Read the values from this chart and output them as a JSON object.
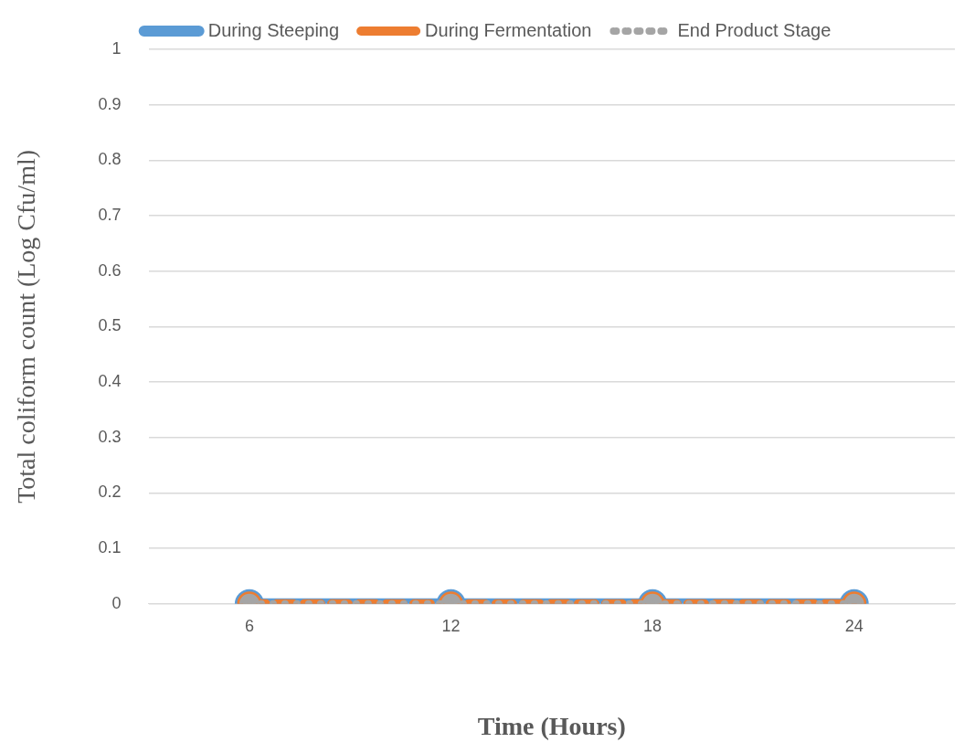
{
  "chart_data": {
    "type": "line",
    "xlabel": "Time (Hours)",
    "ylabel": "Total coliform count (Log Cfu/ml)",
    "categories": [
      "6",
      "12",
      "18",
      "24"
    ],
    "series": [
      {
        "name": "During Steeping",
        "color": "#5b9bd5",
        "line_style": "solid",
        "values": [
          0,
          0,
          0,
          0
        ]
      },
      {
        "name": "During Fermentation",
        "color": "#ed7d31",
        "line_style": "dashed",
        "values": [
          0,
          0,
          0,
          0
        ]
      },
      {
        "name": "End Product Stage",
        "color": "#a5a5a5",
        "line_style": "dotted",
        "values": [
          0,
          0,
          0,
          0
        ]
      }
    ],
    "ylim": [
      0,
      1
    ],
    "yticks": [
      0,
      0.1,
      0.2,
      0.3,
      0.4,
      0.5,
      0.6,
      0.7,
      0.8,
      0.9,
      1
    ],
    "grid": "y",
    "legend": "top",
    "marker": "circle"
  }
}
